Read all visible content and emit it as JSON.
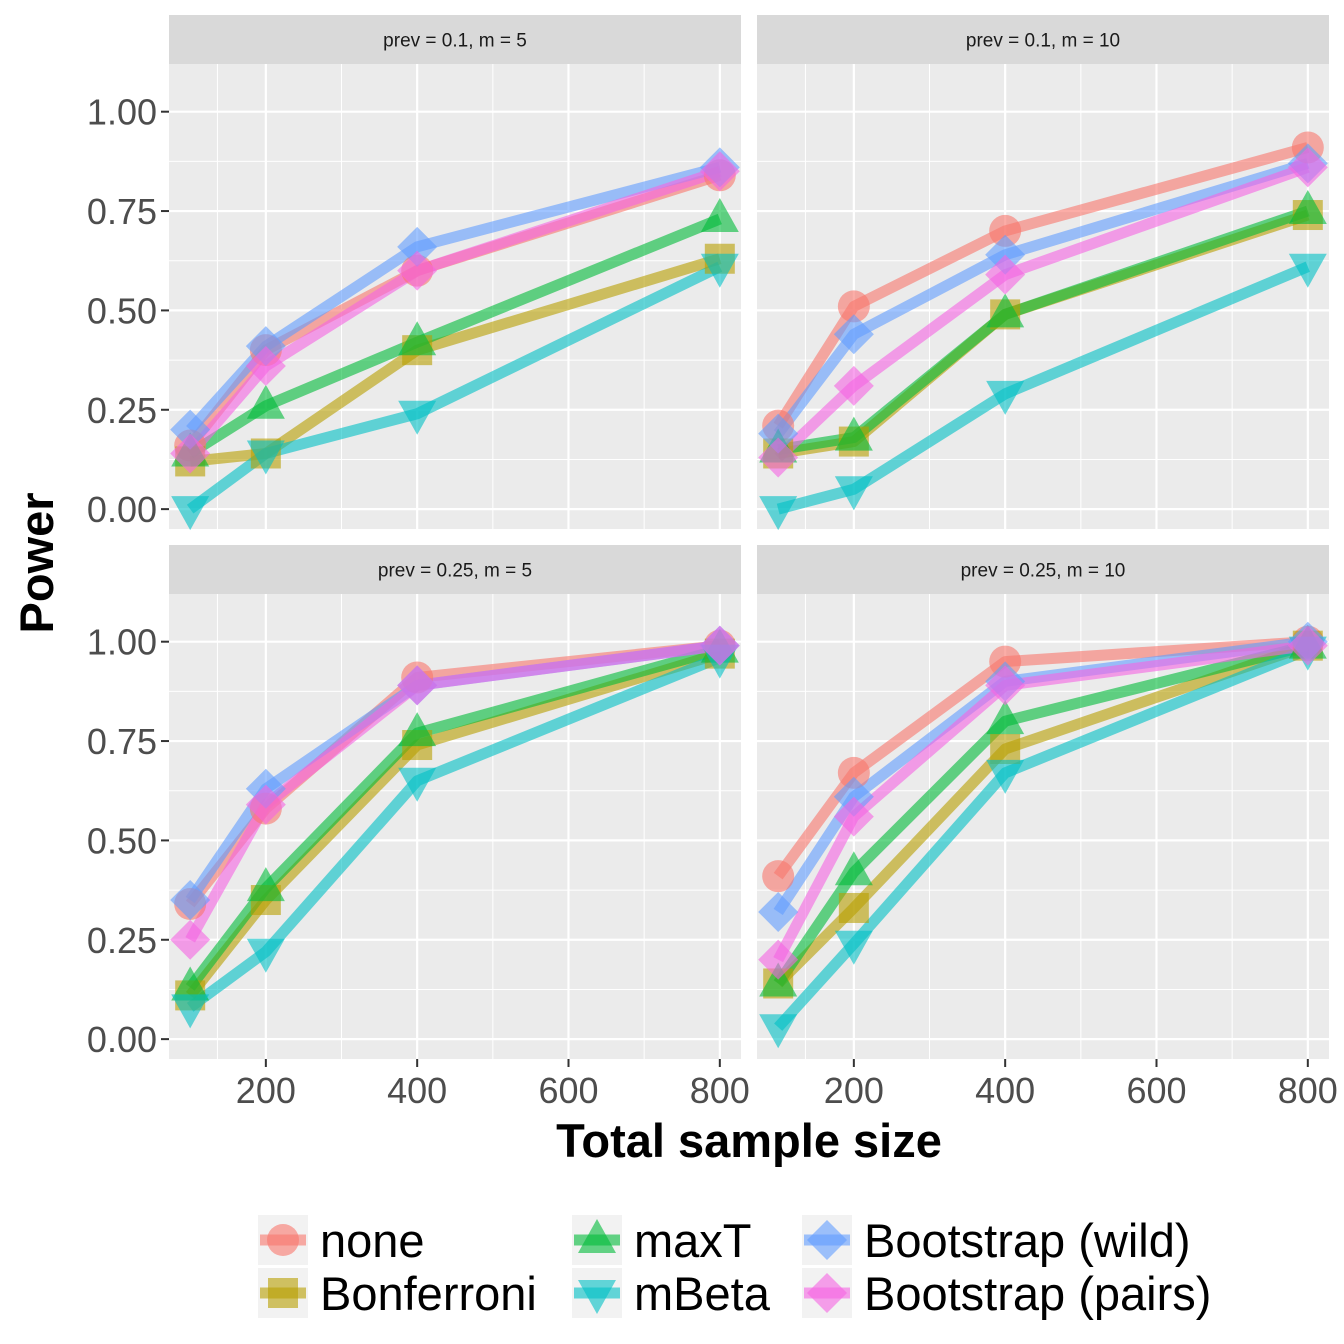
{
  "chart_data": {
    "type": "line",
    "xlabel": "Total sample size",
    "ylabel": "Power",
    "x": [
      100,
      200,
      400,
      800
    ],
    "xticks": [
      200,
      400,
      600,
      800
    ],
    "xlim": [
      72,
      828
    ],
    "yticks": [
      "0.00",
      "0.25",
      "0.50",
      "0.75",
      "1.00"
    ],
    "ylim": [
      -0.05,
      1.12
    ],
    "grid": true,
    "legend_position": "bottom",
    "methods": [
      {
        "name": "none",
        "shape": "circle",
        "color": "#F8766D"
      },
      {
        "name": "Bonferroni",
        "shape": "square",
        "color": "#B79F00"
      },
      {
        "name": "maxT",
        "shape": "triangle-up",
        "color": "#00BA38"
      },
      {
        "name": "mBeta",
        "shape": "triangle-down",
        "color": "#00BFC4"
      },
      {
        "name": "Bootstrap (wild)",
        "shape": "diamond",
        "color": "#619CFF"
      },
      {
        "name": "Bootstrap (pairs)",
        "shape": "diamond",
        "color": "#F564E3"
      }
    ],
    "panels": [
      {
        "strip": "prev =  0.1, m =  5",
        "series": [
          {
            "name": "none",
            "values": [
              0.16,
              0.4,
              0.6,
              0.84
            ]
          },
          {
            "name": "Bonferroni",
            "values": [
              0.12,
              0.14,
              0.4,
              0.63
            ]
          },
          {
            "name": "maxT",
            "values": [
              0.14,
              0.26,
              0.42,
              0.73
            ]
          },
          {
            "name": "mBeta",
            "values": [
              0.0,
              0.14,
              0.24,
              0.61
            ]
          },
          {
            "name": "Bootstrap (wild)",
            "values": [
              0.2,
              0.41,
              0.66,
              0.86
            ]
          },
          {
            "name": "Bootstrap (pairs)",
            "values": [
              0.14,
              0.36,
              0.6,
              0.85
            ]
          }
        ]
      },
      {
        "strip": "prev =  0.1, m =  10",
        "series": [
          {
            "name": "none",
            "values": [
              0.21,
              0.51,
              0.7,
              0.91
            ]
          },
          {
            "name": "Bonferroni",
            "values": [
              0.14,
              0.17,
              0.49,
              0.74
            ]
          },
          {
            "name": "maxT",
            "values": [
              0.15,
              0.18,
              0.49,
              0.75
            ]
          },
          {
            "name": "mBeta",
            "values": [
              0.0,
              0.05,
              0.29,
              0.61
            ]
          },
          {
            "name": "Bootstrap (wild)",
            "values": [
              0.19,
              0.44,
              0.64,
              0.87
            ]
          },
          {
            "name": "Bootstrap (pairs)",
            "values": [
              0.13,
              0.31,
              0.59,
              0.86
            ]
          }
        ]
      },
      {
        "strip": "prev =  0.25, m =  5",
        "series": [
          {
            "name": "none",
            "values": [
              0.34,
              0.58,
              0.91,
              0.99
            ]
          },
          {
            "name": "Bonferroni",
            "values": [
              0.11,
              0.35,
              0.74,
              0.97
            ]
          },
          {
            "name": "maxT",
            "values": [
              0.13,
              0.38,
              0.77,
              0.98
            ]
          },
          {
            "name": "mBeta",
            "values": [
              0.08,
              0.22,
              0.65,
              0.96
            ]
          },
          {
            "name": "Bootstrap (wild)",
            "values": [
              0.35,
              0.63,
              0.89,
              0.99
            ]
          },
          {
            "name": "Bootstrap (pairs)",
            "values": [
              0.25,
              0.59,
              0.89,
              0.99
            ]
          }
        ]
      },
      {
        "strip": "prev =  0.25, m =  10",
        "series": [
          {
            "name": "none",
            "values": [
              0.41,
              0.67,
              0.95,
              1.0
            ]
          },
          {
            "name": "Bonferroni",
            "values": [
              0.14,
              0.33,
              0.73,
              0.99
            ]
          },
          {
            "name": "maxT",
            "values": [
              0.14,
              0.42,
              0.8,
              0.99
            ]
          },
          {
            "name": "mBeta",
            "values": [
              0.03,
              0.24,
              0.67,
              0.98
            ]
          },
          {
            "name": "Bootstrap (wild)",
            "values": [
              0.32,
              0.61,
              0.9,
              1.0
            ]
          },
          {
            "name": "Bootstrap (pairs)",
            "values": [
              0.2,
              0.56,
              0.89,
              0.99
            ]
          }
        ]
      }
    ]
  }
}
